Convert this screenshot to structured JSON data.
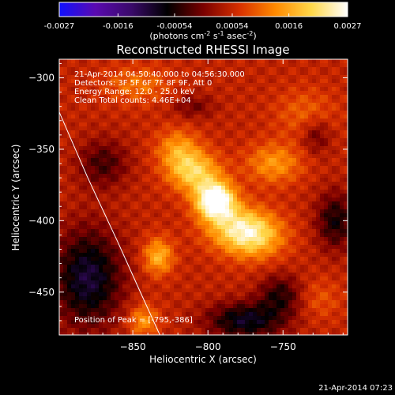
{
  "colorbar": {
    "ticks": [
      "-0.0027",
      "-0.0016",
      "-0.00054",
      "0.00054",
      "0.0016",
      "0.0027"
    ],
    "min": -0.0027,
    "max": 0.0027,
    "unit_main": "(photons cm",
    "unit_sup1": "-2",
    "unit_s": " s",
    "unit_sup2": "-1",
    "unit_asec": " asec",
    "unit_sup3": "-2",
    "unit_end": ")",
    "colormap": [
      "#1010ff",
      "#5a0ab0",
      "#3a0a6a",
      "#000000",
      "#7a0000",
      "#d83000",
      "#ff8a00",
      "#ffd84a",
      "#ffffff"
    ]
  },
  "plot": {
    "title": "Reconstructed RHESSI Image",
    "annotations": [
      "21-Apr-2014 04:50:40.000 to 04:56:30.000",
      "Detectors: 3F 5F 6F 7F 8F 9F, Att 0",
      "Energy Range: 12.0 - 25.0 keV",
      "Clean    Total counts: 4.46E+04"
    ],
    "peak_label": "Position of Peak = [-795,-386]"
  },
  "timestamp": "21-Apr-2014 07:23",
  "chart_data": {
    "type": "heatmap",
    "title": "Reconstructed RHESSI Image",
    "xlabel": "Heliocentric X (arcsec)",
    "ylabel": "Heliocentric Y (arcsec)",
    "xlim": [
      -899,
      -707
    ],
    "ylim": [
      -480,
      -287
    ],
    "x_ticks": [
      -850,
      -800,
      -750
    ],
    "y_ticks": [
      -300,
      -350,
      -400,
      -450
    ],
    "x_tick_labels": [
      "−850",
      "−800",
      "−750"
    ],
    "y_tick_labels": [
      "−300",
      "−350",
      "−400",
      "−450"
    ],
    "value_range": [
      -0.0027,
      0.0027
    ],
    "peak": {
      "x": -795,
      "y": -386,
      "value": 0.0027
    },
    "sources": [
      {
        "x": -795,
        "y": -386,
        "sx": 9,
        "sy": 9,
        "amp": 1.0
      },
      {
        "x": -809,
        "y": -366,
        "sx": 12,
        "sy": 10,
        "amp": 0.55
      },
      {
        "x": -780,
        "y": -405,
        "sx": 15,
        "sy": 11,
        "amp": 0.5
      },
      {
        "x": -768,
        "y": -412,
        "sx": 14,
        "sy": 11,
        "amp": 0.4
      },
      {
        "x": -756,
        "y": -360,
        "sx": 13,
        "sy": 10,
        "amp": 0.35
      },
      {
        "x": -820,
        "y": -350,
        "sx": 10,
        "sy": 10,
        "amp": 0.35
      },
      {
        "x": -833,
        "y": -425,
        "sx": 7,
        "sy": 9,
        "amp": 0.45
      },
      {
        "x": -843,
        "y": -470,
        "sx": 7,
        "sy": 8,
        "amp": 0.35
      },
      {
        "x": -847,
        "y": -305,
        "sx": 16,
        "sy": 9,
        "amp": 0.25
      },
      {
        "x": -735,
        "y": -325,
        "sx": 14,
        "sy": 12,
        "amp": 0.2
      },
      {
        "x": -725,
        "y": -455,
        "sx": 10,
        "sy": 10,
        "amp": 0.15
      }
    ],
    "negative_regions": [
      {
        "x": -880,
        "y": -440,
        "sx": 16,
        "sy": 24,
        "amp": -0.55
      },
      {
        "x": -775,
        "y": -470,
        "sx": 18,
        "sy": 9,
        "amp": -0.5
      },
      {
        "x": -752,
        "y": -452,
        "sx": 10,
        "sy": 10,
        "amp": -0.35
      },
      {
        "x": -715,
        "y": -400,
        "sx": 9,
        "sy": 14,
        "amp": -0.4
      },
      {
        "x": -870,
        "y": -360,
        "sx": 12,
        "sy": 12,
        "amp": -0.3
      },
      {
        "x": -728,
        "y": -340,
        "sx": 7,
        "sy": 9,
        "amp": -0.25
      },
      {
        "x": -810,
        "y": -320,
        "sx": 10,
        "sy": 6,
        "amp": -0.2
      }
    ],
    "limb_curve": {
      "x": [
        -899,
        -880,
        -860,
        -845,
        -832
      ],
      "y": [
        -324,
        -370,
        -415,
        -450,
        -480
      ]
    }
  }
}
